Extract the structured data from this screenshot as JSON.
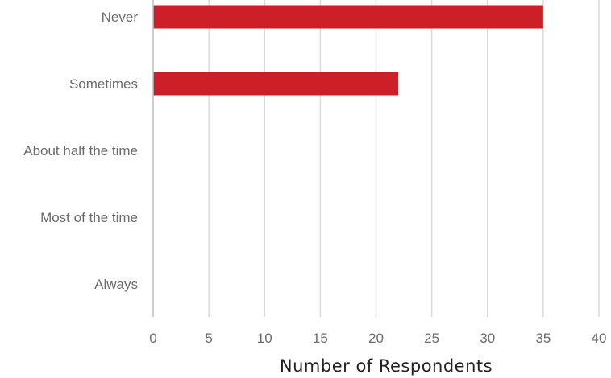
{
  "chart_data": {
    "type": "bar",
    "orientation": "horizontal",
    "categories": [
      "Never",
      "Sometimes",
      "About half the time",
      "Most of the time",
      "Always"
    ],
    "values": [
      35,
      22,
      0,
      0,
      0
    ],
    "xlabel": "Number of Respondents",
    "ylabel": "",
    "xlim": [
      0,
      40
    ],
    "xticks": [
      0,
      5,
      10,
      15,
      20,
      25,
      30,
      35,
      40
    ],
    "grid": "vertical",
    "bar_color": "#cc1f27",
    "grid_color": "#d9d9d9",
    "axis_color": "#bfbfbf"
  }
}
